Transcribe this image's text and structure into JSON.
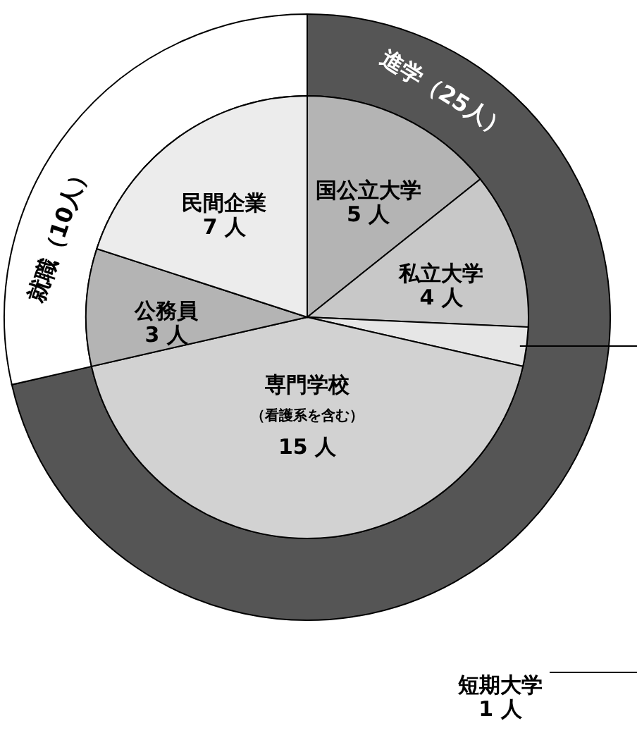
{
  "chart_data": [
    {
      "type": "pie",
      "categories": [
        "国公立大学",
        "私立大学",
        "短期大学",
        "専門学校",
        "公務員",
        "民間企業"
      ],
      "values": [
        5,
        4,
        1,
        15,
        3,
        7
      ],
      "colors": [
        "#b4b4b4",
        "#c8c8c8",
        "#e6e6e6",
        "#d2d2d2",
        "#b4b4b4",
        "#ececec"
      ],
      "value_labels": [
        "5 人",
        "4 人",
        "1 人",
        "15 人",
        "3 人",
        "7 人"
      ],
      "annotations": [
        {
          "text": "（看護系を含む）",
          "x": "専門学校"
        }
      ]
    },
    {
      "type": "donut",
      "categories": [
        "進学",
        "就職"
      ],
      "values": [
        25,
        10
      ],
      "colors": [
        "#555555",
        "#ffffff"
      ],
      "value_labels": [
        "（25人）",
        "（10人）"
      ]
    }
  ]
}
